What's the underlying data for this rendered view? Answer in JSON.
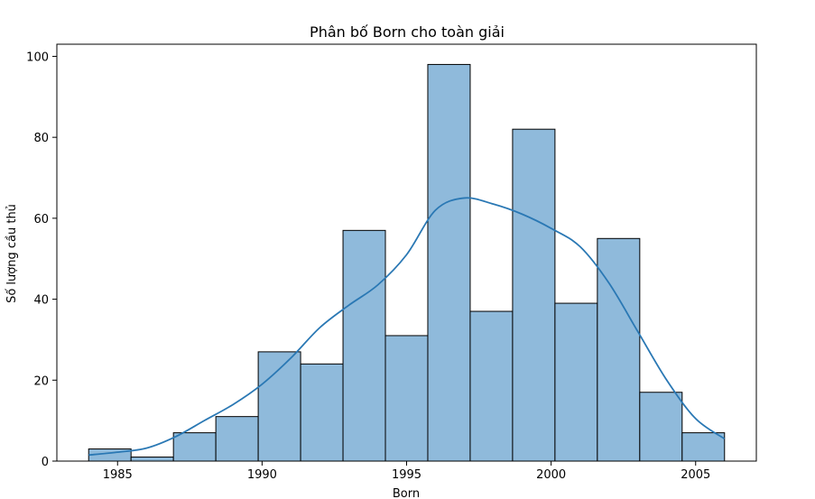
{
  "chart_data": {
    "type": "bar",
    "title": "Phân bố Born cho toàn giải",
    "xlabel": "Born",
    "ylabel": "Số lượng cầu thủ",
    "bin_edges": [
      1984.0,
      1985.4667,
      1986.9333,
      1988.4,
      1989.8667,
      1991.3333,
      1992.8,
      1994.2667,
      1995.7333,
      1997.2,
      1998.6667,
      2000.1333,
      2001.6,
      2003.0667,
      2004.5333,
      2006.0
    ],
    "values": [
      3,
      1,
      7,
      11,
      27,
      24,
      57,
      31,
      98,
      37,
      82,
      39,
      55,
      17,
      7
    ],
    "xlim": [
      1982.9,
      2007.1
    ],
    "ylim": [
      0,
      103
    ],
    "xticks": [
      1985,
      1990,
      1995,
      2000,
      2005
    ],
    "yticks": [
      0,
      20,
      40,
      60,
      80,
      100
    ],
    "kde": {
      "x": [
        1984,
        1985,
        1986,
        1987,
        1988,
        1989,
        1990,
        1991,
        1992,
        1993,
        1994,
        1995,
        1996,
        1997,
        1998,
        1999,
        2000,
        2001,
        2002,
        2003,
        2004,
        2005,
        2006
      ],
      "y": [
        1.5,
        2.2,
        3.2,
        6.0,
        10.0,
        14.0,
        19.0,
        25.5,
        33.0,
        38.5,
        43.5,
        51.0,
        62.0,
        65.0,
        63.5,
        61.0,
        57.5,
        53.0,
        44.0,
        32.0,
        20.0,
        10.5,
        5.5
      ]
    },
    "colors": {
      "bar_fill": "#8fbadb",
      "bar_edge": "#000000",
      "kde_line": "#2a78b4"
    },
    "grid": false,
    "legend": "none"
  }
}
